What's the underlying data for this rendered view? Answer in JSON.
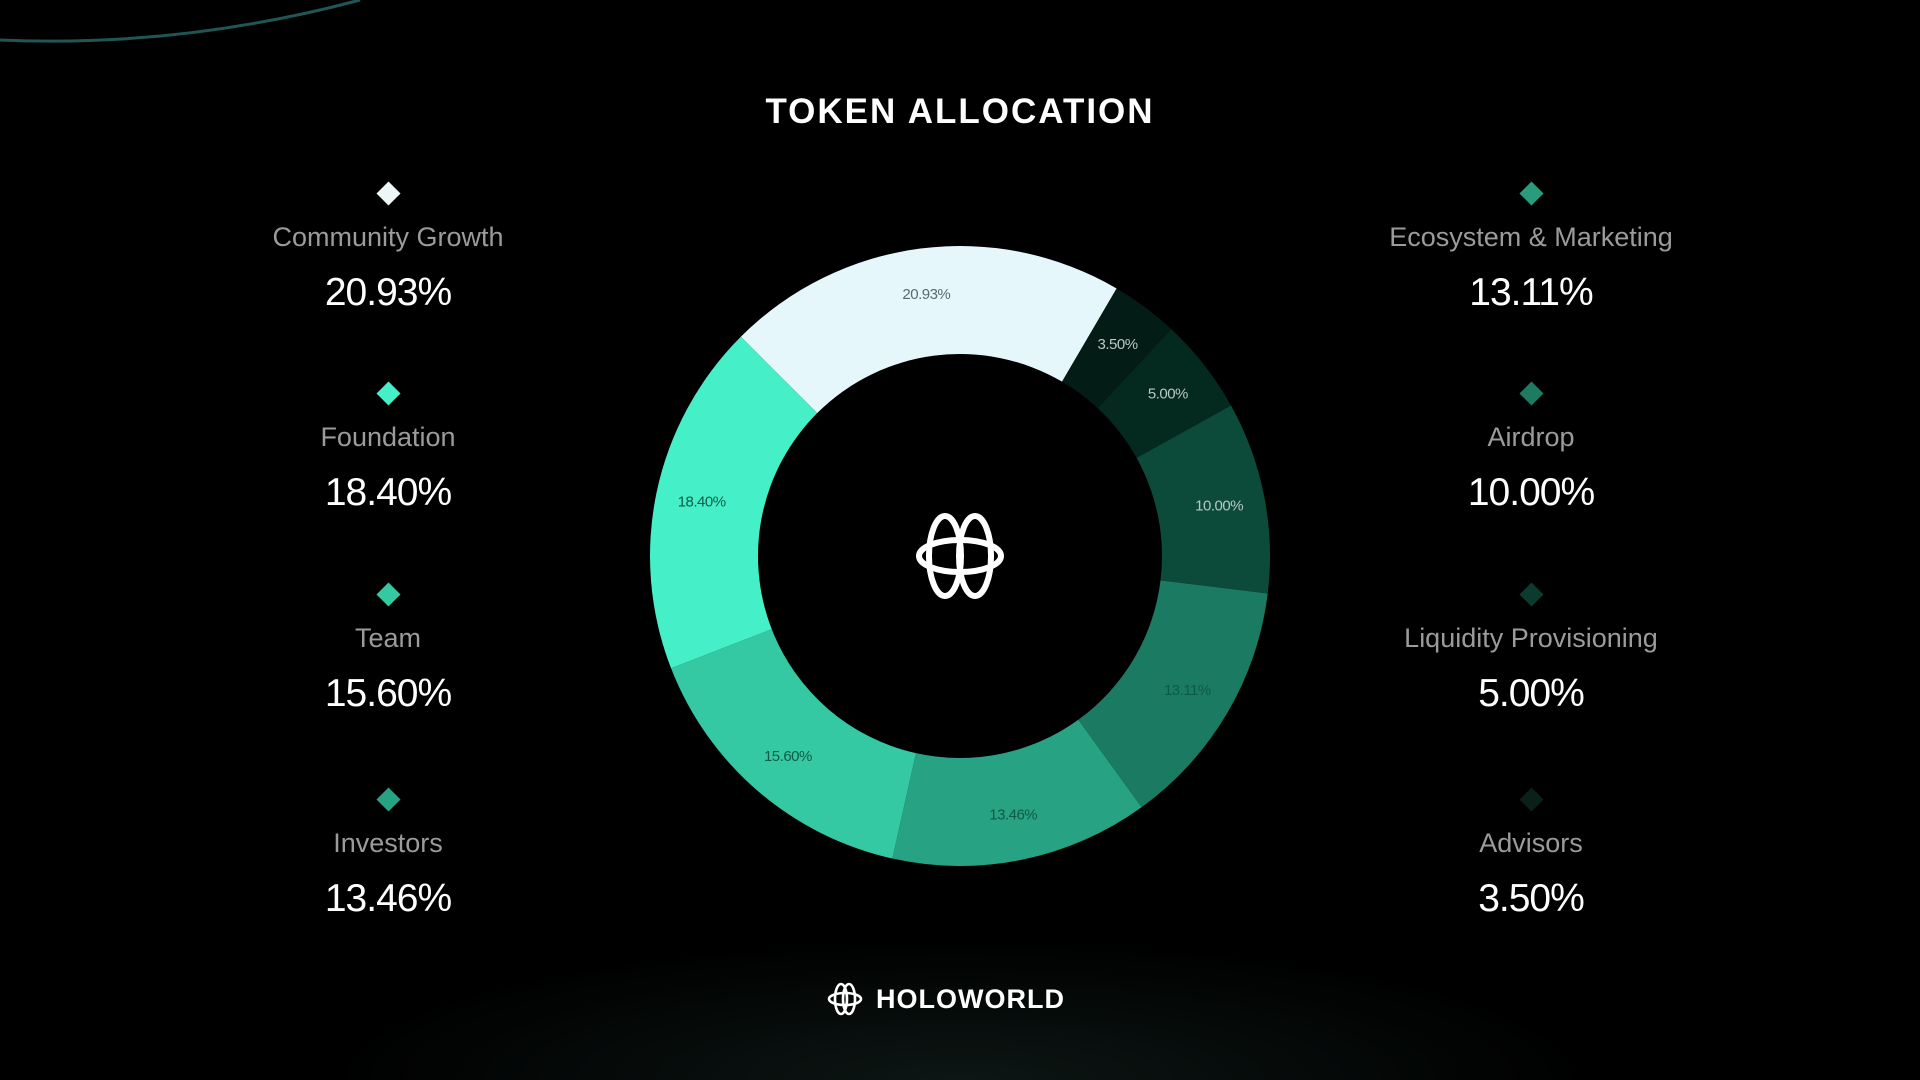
{
  "title": "TOKEN ALLOCATION",
  "logo_text": "HOLOWORLD",
  "chart_data": {
    "type": "pie",
    "variant": "donut",
    "title": "TOKEN ALLOCATION",
    "legend": "left-and-right",
    "series": [
      {
        "name": "Community Growth",
        "value": 20.93,
        "label": "20.93%",
        "color": "#e6f7fb"
      },
      {
        "name": "Advisors",
        "value": 3.5,
        "label": "3.50%",
        "color": "#031c15"
      },
      {
        "name": "Liquidity Provisioning",
        "value": 5.0,
        "label": "5.00%",
        "color": "#04291f"
      },
      {
        "name": "Airdrop",
        "value": 10.0,
        "label": "10.00%",
        "color": "#0c4a3a"
      },
      {
        "name": "Ecosystem & Marketing",
        "value": 13.11,
        "label": "13.11%",
        "color": "#1b7a62"
      },
      {
        "name": "Investors",
        "value": 13.46,
        "label": "13.46%",
        "color": "#27a282"
      },
      {
        "name": "Team",
        "value": 15.6,
        "label": "15.60%",
        "color": "#35c9a3"
      },
      {
        "name": "Foundation",
        "value": 18.4,
        "label": "18.40%",
        "color": "#45f0c8"
      }
    ]
  },
  "legend_left": [
    {
      "name": "Community Growth",
      "value": "20.93%",
      "color": "#eef7f7"
    },
    {
      "name": "Foundation",
      "value": "18.40%",
      "color": "#45f0c8"
    },
    {
      "name": "Team",
      "value": "15.60%",
      "color": "#35c9a3"
    },
    {
      "name": "Investors",
      "value": "13.46%",
      "color": "#27a282"
    }
  ],
  "legend_right": [
    {
      "name": "Ecosystem & Marketing",
      "value": "13.11%",
      "color": "#2a9c7e"
    },
    {
      "name": "Airdrop",
      "value": "10.00%",
      "color": "#1f7a62"
    },
    {
      "name": "Liquidity Provisioning",
      "value": "5.00%",
      "color": "#0c3a2e"
    },
    {
      "name": "Advisors",
      "value": "3.50%",
      "color": "#0a2019"
    }
  ]
}
